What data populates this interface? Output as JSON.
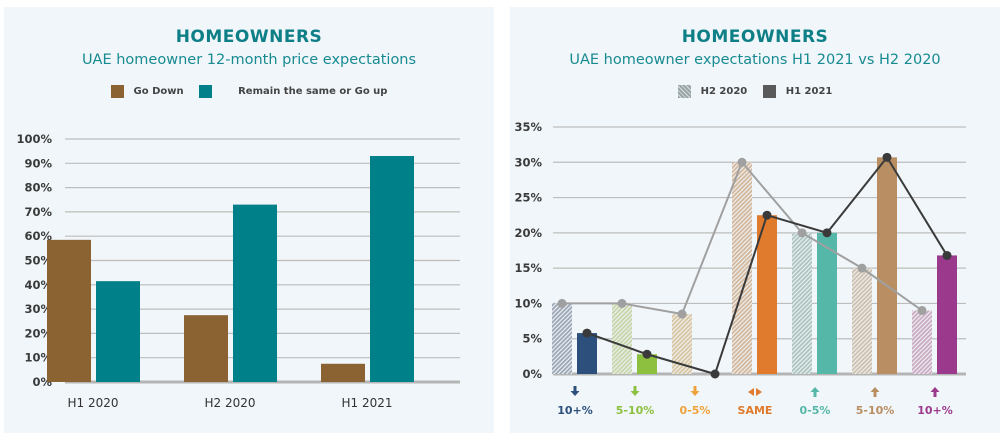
{
  "chart_data": [
    {
      "type": "bar",
      "title": "HOMEOWNERS",
      "subtitle": "UAE homeowner 12-month price expectations",
      "categories": [
        "H1 2020",
        "H2 2020",
        "H1 2021"
      ],
      "series": [
        {
          "name": "Go Down",
          "color": "#8b6333",
          "values": [
            58.5,
            27.5,
            7.5
          ]
        },
        {
          "name": "Remain the same or Go up",
          "color": "#00818a",
          "values": [
            41.5,
            73,
            93
          ]
        }
      ],
      "yticks": [
        "0%",
        "10%",
        "20%",
        "30%",
        "40%",
        "50%",
        "60%",
        "70%",
        "80%",
        "90%",
        "100%"
      ],
      "ylim": [
        0,
        100
      ],
      "grid": true,
      "legend": "top-center",
      "xlabel": "",
      "ylabel": ""
    },
    {
      "type": "bar",
      "title": "HOMEOWNERS",
      "subtitle": "UAE homeowner expectations H1 2021 vs H2 2020",
      "categories": [
        {
          "label": "10+%",
          "direction": "down",
          "color": "#2c4f7c",
          "hatch": "#9aa6b8"
        },
        {
          "label": "5-10%",
          "direction": "down",
          "color": "#8dc03f",
          "hatch": "#c5d5a8"
        },
        {
          "label": "0-5%",
          "direction": "down",
          "color": "#f0a23a",
          "hatch": "#d8c5a0"
        },
        {
          "label": "SAME",
          "direction": "same",
          "color": "#e07b2d",
          "hatch": "#d3b79c"
        },
        {
          "label": "0-5%",
          "direction": "up",
          "color": "#55b7a8",
          "hatch": "#a9c4c1"
        },
        {
          "label": "5-10%",
          "direction": "up",
          "color": "#b98e62",
          "hatch": "#cdbfae"
        },
        {
          "label": "10+%",
          "direction": "up",
          "color": "#9b3a8c",
          "hatch": "#c9a9c3"
        }
      ],
      "series": [
        {
          "name": "H2 2020",
          "style": "hatched bars + grey line",
          "line_color": "#a0a0a0",
          "values": [
            10,
            10,
            8.5,
            30,
            20,
            15,
            9
          ]
        },
        {
          "name": "H1 2021",
          "style": "solid bars + dark line",
          "line_color": "#3a3a3a",
          "values": [
            5.8,
            2.8,
            0,
            22.5,
            20,
            30.7,
            16.8
          ]
        }
      ],
      "yticks": [
        "0%",
        "5%",
        "10%",
        "15%",
        "20%",
        "25%",
        "30%",
        "35%"
      ],
      "ylim": [
        0,
        35
      ],
      "grid": true,
      "legend": "top-center",
      "xlabel": "",
      "ylabel": ""
    }
  ],
  "legend_swatch": {
    "h2_2020": "#9aa6a6",
    "h1_2021": "#5a5a5a"
  }
}
